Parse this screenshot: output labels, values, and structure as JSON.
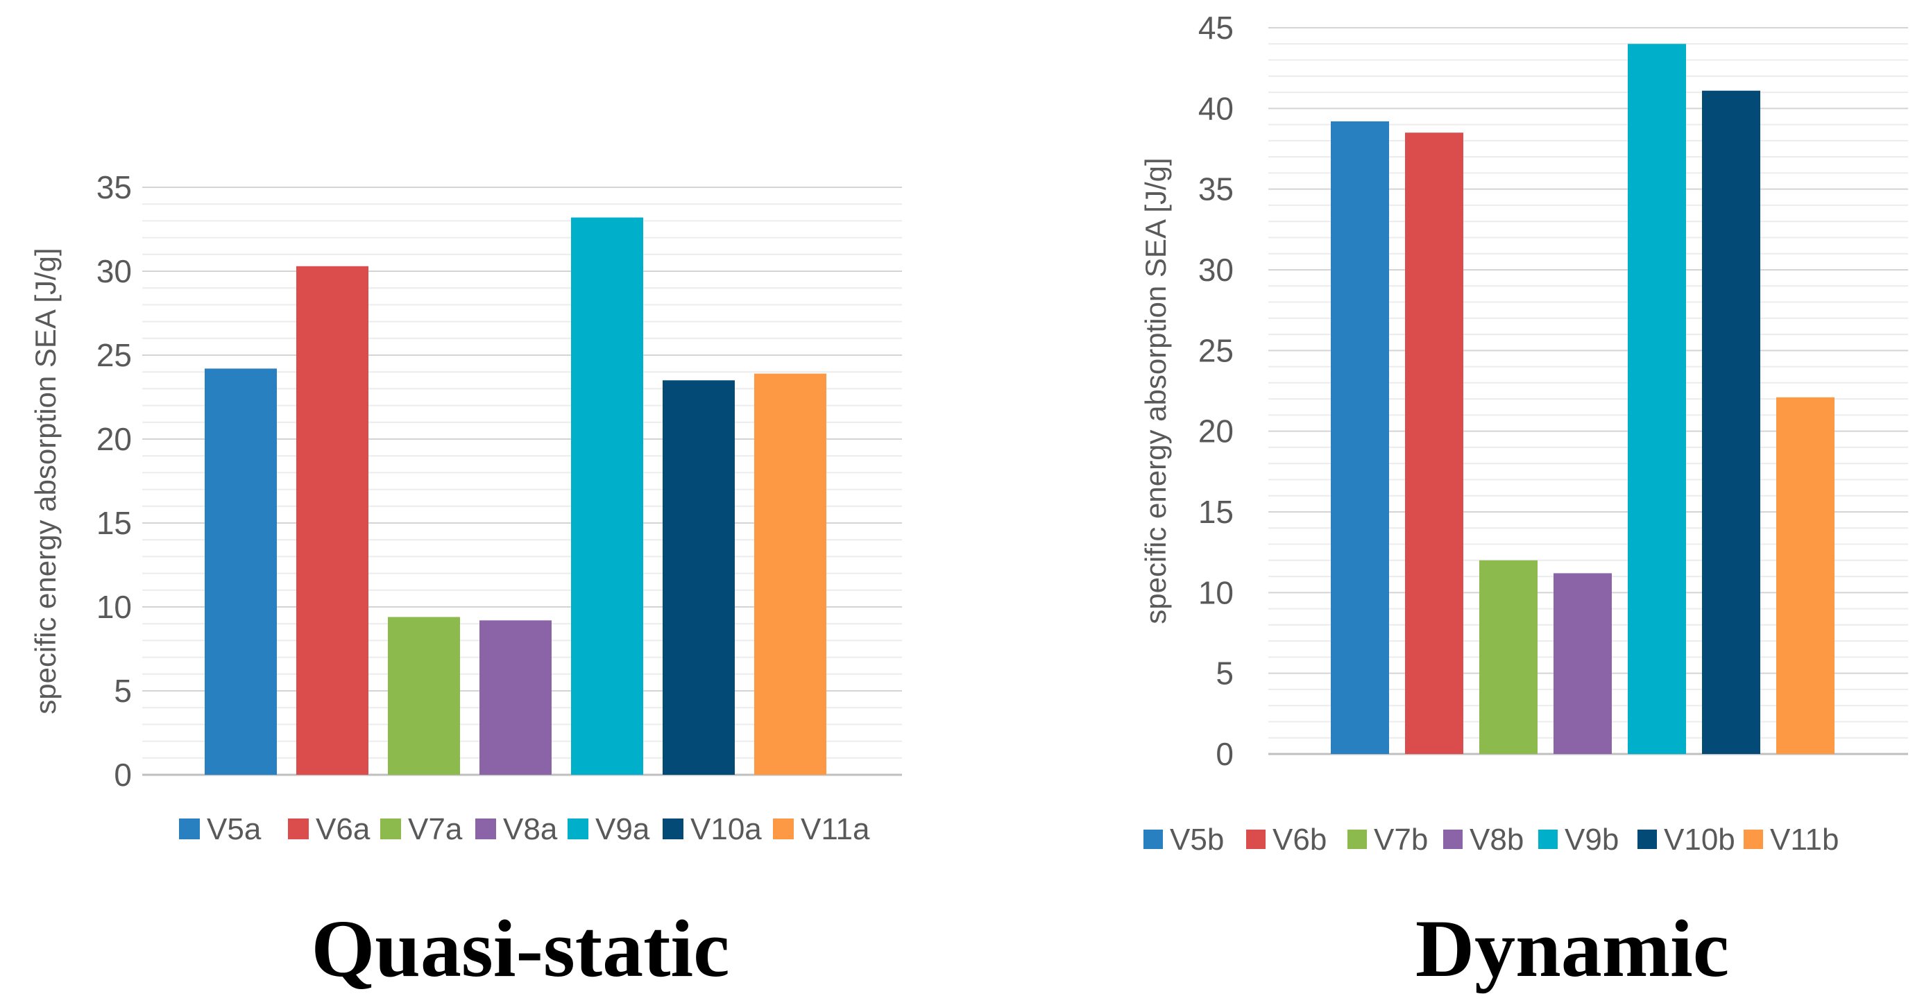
{
  "chart_data": [
    {
      "type": "bar",
      "title": "Quasi-static",
      "ylabel": "specific energy absorption SEA [J/g]",
      "xlabel": "",
      "ylim": [
        0,
        35
      ],
      "yticks": [
        0,
        5,
        10,
        15,
        20,
        25,
        30,
        35
      ],
      "grid": true,
      "legend_position": "bottom",
      "categories": [
        "V5a",
        "V6a",
        "V7a",
        "V8a",
        "V9a",
        "V10a",
        "V11a"
      ],
      "values": [
        24.2,
        30.3,
        9.4,
        9.2,
        33.2,
        23.5,
        23.9
      ],
      "colors": [
        "#2980c1",
        "#db4c4c",
        "#8dba4d",
        "#8a64a6",
        "#00afc9",
        "#034a76",
        "#fd9944"
      ]
    },
    {
      "type": "bar",
      "title": "Dynamic",
      "ylabel": "specific energy absorption SEA [J/g]",
      "xlabel": "",
      "ylim": [
        0,
        45
      ],
      "yticks": [
        0,
        5,
        10,
        15,
        20,
        25,
        30,
        35,
        40,
        45
      ],
      "grid": true,
      "legend_position": "bottom",
      "categories": [
        "V5b",
        "V6b",
        "V7b",
        "V8b",
        "V9b",
        "V10b",
        "V11b"
      ],
      "values": [
        39.2,
        38.5,
        12.0,
        11.2,
        44.0,
        41.1,
        22.1
      ],
      "colors": [
        "#2980c1",
        "#db4c4c",
        "#8dba4d",
        "#8a64a6",
        "#00afc9",
        "#034a76",
        "#fd9944"
      ]
    }
  ]
}
